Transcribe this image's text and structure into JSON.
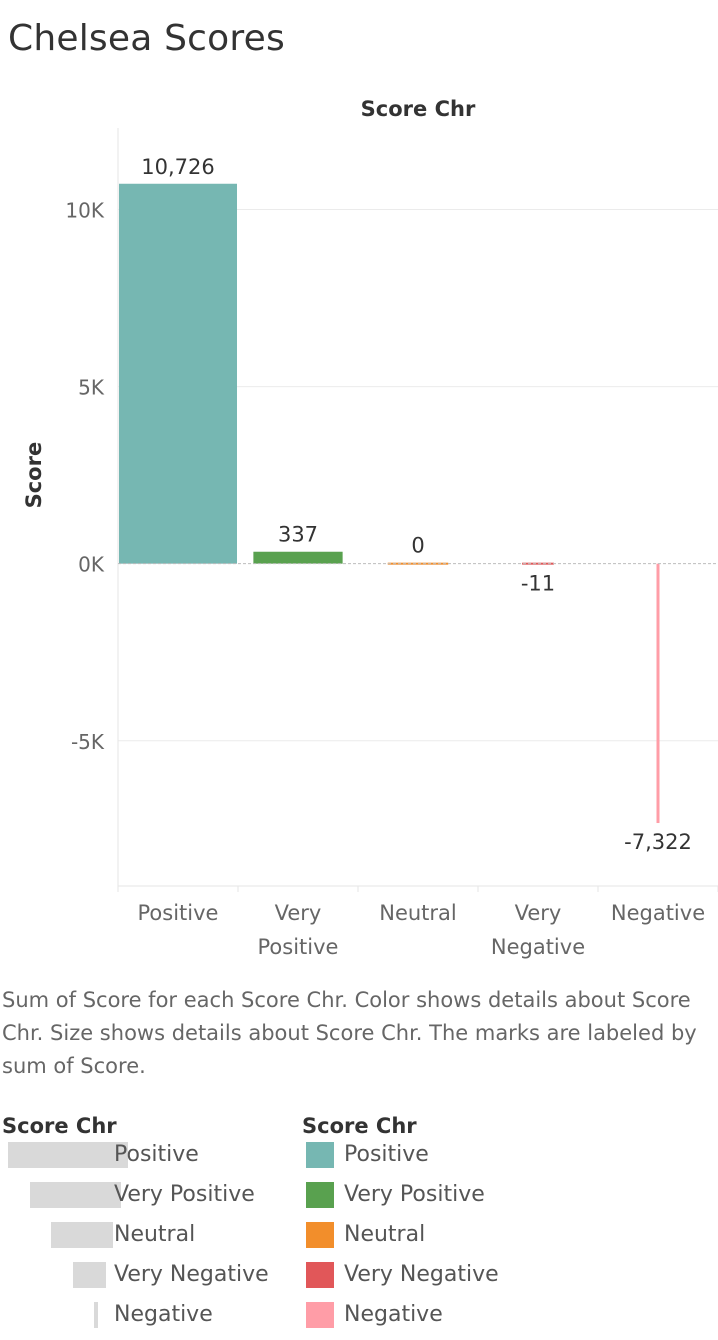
{
  "page": {
    "title": "Chelsea Scores",
    "caption": "Sum of Score for each Score Chr.  Color shows details about Score Chr.  Size shows details about Score Chr.  The marks are labeled by sum of Score."
  },
  "chart_data": {
    "type": "bar",
    "title": "Score Chr",
    "xlabel": "",
    "ylabel": "Score",
    "categories": [
      "Positive",
      "Very Positive",
      "Neutral",
      "Very Negative",
      "Negative"
    ],
    "category_lines": [
      [
        "Positive"
      ],
      [
        "Very",
        "Positive"
      ],
      [
        "Neutral"
      ],
      [
        "Very",
        "Negative"
      ],
      [
        "Negative"
      ]
    ],
    "values": [
      10726,
      337,
      0,
      -11,
      -7322
    ],
    "value_labels": [
      "10,726",
      "337",
      "0",
      "-11",
      "-7,322"
    ],
    "colors": [
      "#76b7b2",
      "#59a14f",
      "#f28e2b",
      "#e15759",
      "#ff9da7"
    ],
    "size_order": [
      1.0,
      0.75,
      0.5,
      0.25,
      0.0
    ],
    "ylim": [
      -9100,
      12300
    ],
    "yticks": [
      10000,
      5000,
      0,
      -5000
    ],
    "ytick_labels": [
      "10K",
      "5K",
      "0K",
      "-5K"
    ],
    "grid": true
  },
  "legends": {
    "size": {
      "title": "Score Chr",
      "items": [
        "Positive",
        "Very Positive",
        "Neutral",
        "Very Negative",
        "Negative"
      ]
    },
    "color": {
      "title": "Score Chr",
      "items": [
        {
          "label": "Positive",
          "color": "#76b7b2"
        },
        {
          "label": "Very Positive",
          "color": "#59a14f"
        },
        {
          "label": "Neutral",
          "color": "#f28e2b"
        },
        {
          "label": "Very Negative",
          "color": "#e15759"
        },
        {
          "label": "Negative",
          "color": "#ff9da7"
        }
      ]
    }
  }
}
